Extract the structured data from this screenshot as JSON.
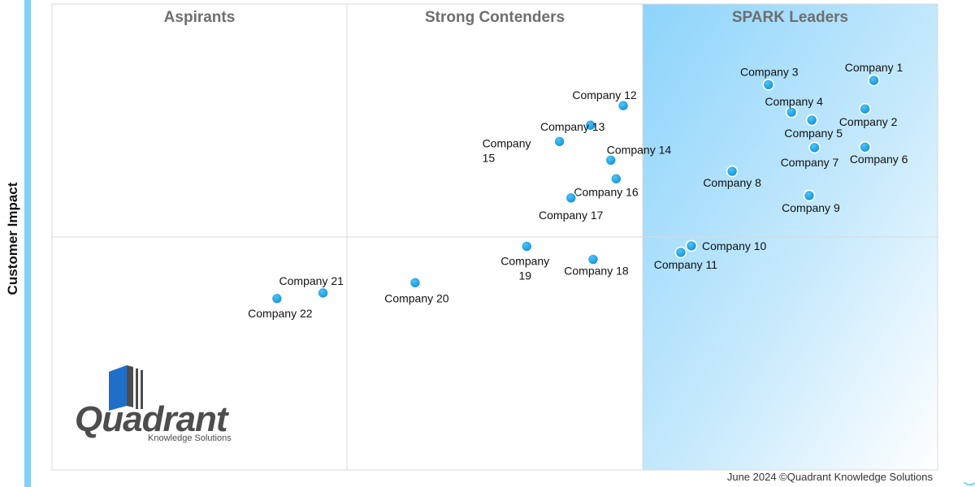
{
  "chart_data": {
    "type": "scatter",
    "title": "",
    "ylabel": "Customer Impact",
    "xlabel": "",
    "xlim": [
      0,
      100
    ],
    "ylim": [
      0,
      100
    ],
    "quadrants": [
      "Aspirants",
      "Strong Contenders",
      "SPARK Leaders"
    ],
    "points": [
      {
        "label": "Company 1",
        "x": 92.8,
        "y": 83.6
      },
      {
        "label": "Company 2",
        "x": 91.8,
        "y": 77.5
      },
      {
        "label": "Company 3",
        "x": 80.9,
        "y": 82.7
      },
      {
        "label": "Company 4",
        "x": 83.5,
        "y": 76.8
      },
      {
        "label": "Company 5",
        "x": 85.8,
        "y": 75.1
      },
      {
        "label": "Company 6",
        "x": 91.8,
        "y": 69.3
      },
      {
        "label": "Company 7",
        "x": 86.1,
        "y": 69.2
      },
      {
        "label": "Company 8",
        "x": 76.8,
        "y": 64.1
      },
      {
        "label": "Company 9",
        "x": 85.5,
        "y": 58.9
      },
      {
        "label": "Company 10",
        "x": 72.2,
        "y": 48.1
      },
      {
        "label": "Company 11",
        "x": 71.0,
        "y": 46.7
      },
      {
        "label": "Company 12",
        "x": 64.5,
        "y": 78.2
      },
      {
        "label": "Company 13",
        "x": 60.8,
        "y": 74.0
      },
      {
        "label": "Company 14",
        "x": 63.1,
        "y": 66.5
      },
      {
        "label": "Company 15",
        "x": 57.3,
        "y": 70.5
      },
      {
        "label": "Company 16",
        "x": 63.7,
        "y": 62.5
      },
      {
        "label": "Company 17",
        "x": 58.6,
        "y": 58.4
      },
      {
        "label": "Company 18",
        "x": 61.1,
        "y": 45.2
      },
      {
        "label": "Company 19",
        "x": 53.6,
        "y": 48.0
      },
      {
        "label": "Company 20",
        "x": 41.0,
        "y": 40.2
      },
      {
        "label": "Company 21",
        "x": 30.6,
        "y": 38.0
      },
      {
        "label": "Company 22",
        "x": 25.4,
        "y": 36.8
      }
    ]
  },
  "axis": {
    "y_label": "Customer Impact"
  },
  "logo": {
    "word": "Quadrant",
    "sub": "Knowledge Solutions"
  },
  "footer": {
    "text": "June 2024 ©Quadrant Knowledge Solutions"
  },
  "colors": {
    "point": "#1aa7ec",
    "leader_bg": "#bfe6fb",
    "grid": "#d9d9d9"
  }
}
